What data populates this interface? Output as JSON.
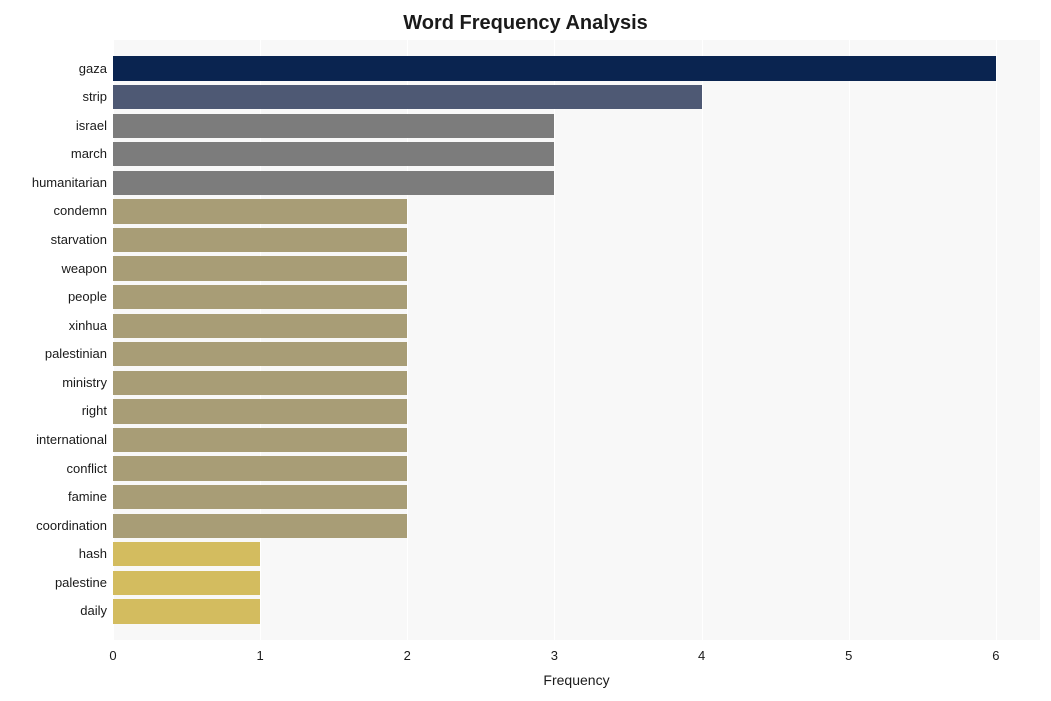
{
  "chart": {
    "type": "bar_horizontal",
    "title": "Word Frequency Analysis",
    "title_fontsize": 20,
    "title_fontweight": "bold",
    "xlabel": "Frequency",
    "xlabel_fontsize": 14,
    "background_color": "#ffffff",
    "plot_background": "#f8f8f8",
    "grid_color": "#ffffff",
    "xlim": [
      0,
      6.3
    ],
    "xticks": [
      0,
      1,
      2,
      3,
      4,
      5,
      6
    ],
    "y_label_fontsize": 13,
    "x_tick_fontsize": 13,
    "bar_height_ratio": 0.85,
    "bars": [
      {
        "label": "gaza",
        "value": 6,
        "color": "#0a2450"
      },
      {
        "label": "strip",
        "value": 4,
        "color": "#4e5974"
      },
      {
        "label": "israel",
        "value": 3,
        "color": "#7c7c7c"
      },
      {
        "label": "march",
        "value": 3,
        "color": "#7c7c7c"
      },
      {
        "label": "humanitarian",
        "value": 3,
        "color": "#7c7c7c"
      },
      {
        "label": "condemn",
        "value": 2,
        "color": "#a89d76"
      },
      {
        "label": "starvation",
        "value": 2,
        "color": "#a89d76"
      },
      {
        "label": "weapon",
        "value": 2,
        "color": "#a89d76"
      },
      {
        "label": "people",
        "value": 2,
        "color": "#a89d76"
      },
      {
        "label": "xinhua",
        "value": 2,
        "color": "#a89d76"
      },
      {
        "label": "palestinian",
        "value": 2,
        "color": "#a89d76"
      },
      {
        "label": "ministry",
        "value": 2,
        "color": "#a89d76"
      },
      {
        "label": "right",
        "value": 2,
        "color": "#a89d76"
      },
      {
        "label": "international",
        "value": 2,
        "color": "#a89d76"
      },
      {
        "label": "conflict",
        "value": 2,
        "color": "#a89d76"
      },
      {
        "label": "famine",
        "value": 2,
        "color": "#a89d76"
      },
      {
        "label": "coordination",
        "value": 2,
        "color": "#a89d76"
      },
      {
        "label": "hash",
        "value": 1,
        "color": "#d3bc5f"
      },
      {
        "label": "palestine",
        "value": 1,
        "color": "#d3bc5f"
      },
      {
        "label": "daily",
        "value": 1,
        "color": "#d3bc5f"
      }
    ]
  }
}
